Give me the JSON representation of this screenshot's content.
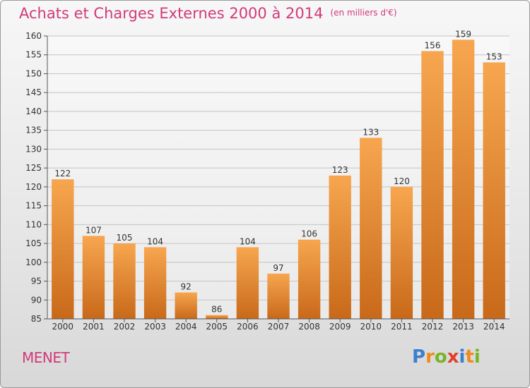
{
  "title": "Achats et Charges Externes 2000 à 2014",
  "subtitle": "(en milliers d'€)",
  "commune": "MENET",
  "logo": {
    "letters": [
      "P",
      "r",
      "o",
      "x",
      "i",
      "t",
      "i"
    ],
    "colors": [
      "#3a7fd0",
      "#f08a1c",
      "#78b428",
      "#e0402a",
      "#3a7fd0",
      "#f08a1c",
      "#78b428"
    ]
  },
  "chart_data": {
    "type": "bar",
    "title": "Achats et Charges Externes 2000 à 2014",
    "subtitle": "(en milliers d'€)",
    "categories": [
      "2000",
      "2001",
      "2002",
      "2003",
      "2004",
      "2005",
      "2006",
      "2007",
      "2008",
      "2009",
      "2010",
      "2011",
      "2012",
      "2013",
      "2014"
    ],
    "values": [
      122,
      107,
      105,
      104,
      92,
      86,
      104,
      97,
      106,
      123,
      133,
      120,
      156,
      159,
      153
    ],
    "ylim": [
      85,
      160
    ],
    "yticks": [
      85,
      90,
      95,
      100,
      105,
      110,
      115,
      120,
      125,
      130,
      135,
      140,
      145,
      150,
      155,
      160
    ],
    "grid": true,
    "colors": {
      "bar_light": "#f7a64f",
      "bar_dark": "#c8691a",
      "title": "#d13a7a"
    }
  }
}
